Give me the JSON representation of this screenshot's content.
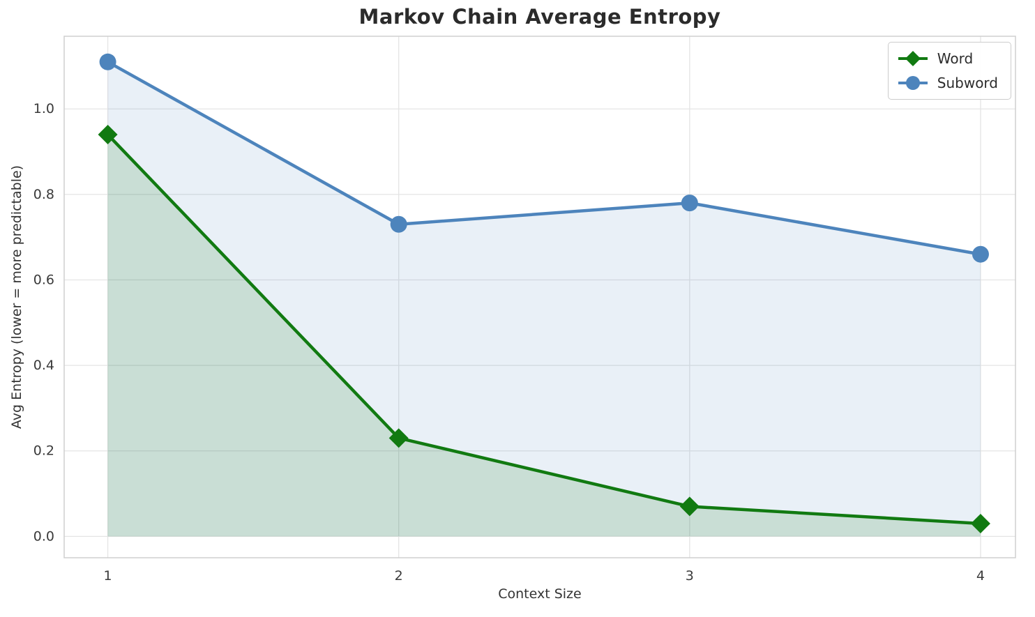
{
  "chart_data": {
    "type": "line",
    "title": "Markov Chain Average Entropy",
    "xlabel": "Context Size",
    "ylabel": "Avg Entropy (lower = more predictable)",
    "x": [
      1,
      2,
      3,
      4
    ],
    "xticks": [
      1,
      2,
      3,
      4
    ],
    "yticks": [
      0.0,
      0.2,
      0.4,
      0.6,
      0.8,
      1.0
    ],
    "xlim": [
      0.85,
      4.12
    ],
    "ylim": [
      -0.05,
      1.17
    ],
    "grid": true,
    "legend_position": "upper right",
    "colors": {
      "grid": "#e4e4e4",
      "spine": "#cfcfcf",
      "tick_text": "#3a3a3a"
    },
    "series": [
      {
        "name": "Word",
        "marker": "diamond",
        "color": "#117a11",
        "fill_opacity": 0.15,
        "values": [
          0.94,
          0.23,
          0.07,
          0.03
        ]
      },
      {
        "name": "Subword",
        "marker": "circle",
        "color": "#4d84bc",
        "fill_opacity": 0.12,
        "values": [
          1.11,
          0.73,
          0.78,
          0.66
        ]
      }
    ]
  }
}
